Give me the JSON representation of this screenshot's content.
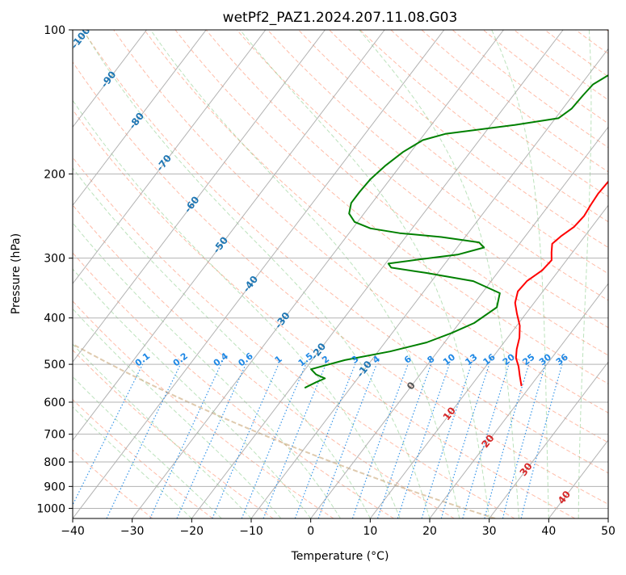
{
  "chart_data": {
    "type": "skew-t",
    "title": "wetPf2_PAZ1.2024.207.11.08.G03",
    "xlabel": "Temperature (°C)",
    "ylabel": "Pressure (hPa)",
    "xlim": [
      -40,
      50
    ],
    "ylim": [
      1050,
      100
    ],
    "y_scale": "log",
    "x_ticks": [
      -40,
      -30,
      -20,
      -10,
      0,
      10,
      20,
      30,
      40,
      50
    ],
    "y_ticks": [
      100,
      200,
      300,
      400,
      500,
      600,
      700,
      800,
      900,
      1000
    ],
    "grid": true,
    "colors": {
      "temperature": "#ff0000",
      "dewpoint": "#008000",
      "isotherm": "#aaaaaa",
      "dry_adiabat": "#ff6a3d",
      "moist_adiabat": "#6abf6a",
      "mixing_ratio": "#1e88e5",
      "parcel": "#d2b48c",
      "label_blue": "#1f77b4",
      "label_red": "#d62728"
    },
    "series": [
      {
        "key": "temperature",
        "points": [
          [
            18.5,
            555
          ],
          [
            17,
            530
          ],
          [
            15.5,
            505
          ],
          [
            14,
            485
          ],
          [
            13,
            465
          ],
          [
            12,
            440
          ],
          [
            10.5,
            415
          ],
          [
            8.5,
            392
          ],
          [
            6.8,
            372
          ],
          [
            5.8,
            352
          ],
          [
            6,
            335
          ],
          [
            7.2,
            318
          ],
          [
            7.5,
            303
          ],
          [
            6.5,
            292
          ],
          [
            5.5,
            280
          ],
          [
            6,
            270
          ],
          [
            7,
            258
          ],
          [
            7.3,
            245
          ],
          [
            7,
            232
          ],
          [
            6.8,
            220
          ],
          [
            7,
            205
          ],
          [
            7.3,
            190
          ],
          [
            7.2,
            175
          ],
          [
            6.9,
            160
          ],
          [
            6.7,
            145
          ],
          [
            7,
            132
          ],
          [
            7.6,
            122
          ],
          [
            8.3,
            113
          ],
          [
            9.3,
            106
          ],
          [
            10.3,
            100
          ]
        ]
      },
      {
        "key": "dewpoint",
        "points": [
          [
            -17.7,
            560
          ],
          [
            -16.5,
            545
          ],
          [
            -15.5,
            535
          ],
          [
            -17.5,
            525
          ],
          [
            -19,
            512
          ],
          [
            -14.5,
            490
          ],
          [
            -8,
            470
          ],
          [
            -3,
            450
          ],
          [
            0,
            430
          ],
          [
            2.5,
            410
          ],
          [
            4.3,
            380
          ],
          [
            3,
            355
          ],
          [
            -3,
            335
          ],
          [
            -12,
            322
          ],
          [
            -18.5,
            314
          ],
          [
            -19.5,
            308
          ],
          [
            -15,
            302
          ],
          [
            -9,
            295
          ],
          [
            -5.5,
            285
          ],
          [
            -7,
            278
          ],
          [
            -14,
            271
          ],
          [
            -21.5,
            266
          ],
          [
            -27,
            260
          ],
          [
            -30.5,
            252
          ],
          [
            -32.5,
            242
          ],
          [
            -33.5,
            230
          ],
          [
            -33.5,
            218
          ],
          [
            -33.3,
            205
          ],
          [
            -32.5,
            192
          ],
          [
            -31.3,
            180
          ],
          [
            -29.5,
            170
          ],
          [
            -26.5,
            165
          ],
          [
            -16,
            158
          ],
          [
            -9.5,
            153
          ],
          [
            -8.5,
            146
          ],
          [
            -8.3,
            137
          ],
          [
            -8,
            130
          ],
          [
            -6.5,
            124
          ],
          [
            -4.8,
            117
          ],
          [
            -2.8,
            110
          ],
          [
            -1,
            104
          ],
          [
            0,
            100
          ]
        ]
      }
    ],
    "isotherm_labels": [
      {
        "value": "-100",
        "t": -100,
        "p": 104,
        "color_key": "label_blue"
      },
      {
        "value": "-90",
        "t": -90,
        "p": 127,
        "color_key": "label_blue"
      },
      {
        "value": "-80",
        "t": -80,
        "p": 155,
        "color_key": "label_blue"
      },
      {
        "value": "-70",
        "t": -70,
        "p": 190,
        "color_key": "label_blue"
      },
      {
        "value": "-60",
        "t": -60,
        "p": 232,
        "color_key": "label_blue"
      },
      {
        "value": "-50",
        "t": -50,
        "p": 282,
        "color_key": "label_blue"
      },
      {
        "value": "-40",
        "t": -40,
        "p": 340,
        "color_key": "label_blue"
      },
      {
        "value": "-30",
        "t": -30,
        "p": 405,
        "color_key": "label_blue"
      },
      {
        "value": "-20",
        "t": -20,
        "p": 470,
        "color_key": "label_blue"
      },
      {
        "value": "-10",
        "t": -10,
        "p": 512,
        "color_key": "label_blue"
      },
      {
        "value": "0",
        "t": 0,
        "p": 555,
        "color_key": "label_gray"
      },
      {
        "value": "10",
        "t": 10,
        "p": 635,
        "color_key": "label_red"
      },
      {
        "value": "20",
        "t": 20,
        "p": 725,
        "color_key": "label_red"
      },
      {
        "value": "30",
        "t": 30,
        "p": 830,
        "color_key": "label_red"
      },
      {
        "value": "40",
        "t": 40,
        "p": 950,
        "color_key": "label_red"
      }
    ],
    "mixing_ratio_labels": [
      "0.1",
      "0.2",
      "0.4",
      "0.6",
      "1",
      "1.5",
      "2",
      "3",
      "4",
      "6",
      "8",
      "10",
      "13",
      "16",
      "20",
      "25",
      "30",
      "36"
    ]
  }
}
